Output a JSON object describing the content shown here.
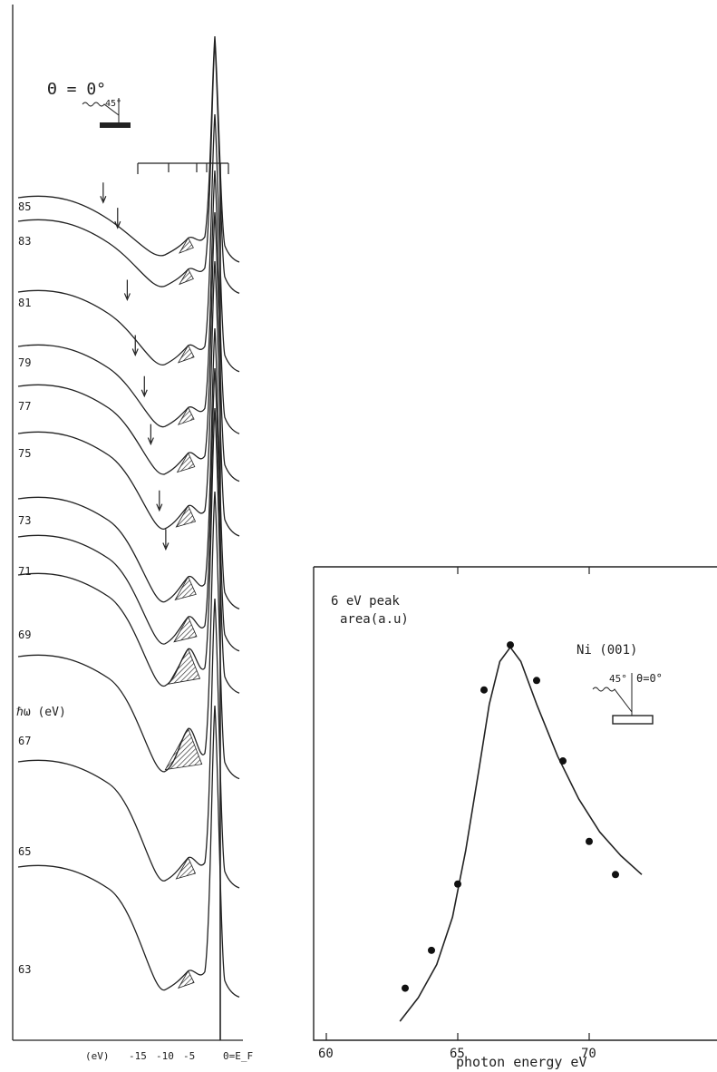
{
  "chart_data": [
    {
      "type": "line",
      "panel": "left",
      "angle_label": "Θ = 0°",
      "inset_angle": "45°",
      "side_label": "ℏω (eV)",
      "x_unit_label": "(eV)",
      "x_ticks": [
        "-15",
        "-10",
        "-5",
        "0=E_F"
      ],
      "xlim": [
        -16,
        0
      ],
      "series": [
        {
          "name": "85",
          "arrow_eV": -18.5
        },
        {
          "name": "83",
          "arrow_eV": -15.8
        },
        {
          "name": "81",
          "arrow_eV": -14.0
        },
        {
          "name": "79",
          "arrow_eV": -12.5
        },
        {
          "name": "77",
          "arrow_eV": -10.8
        },
        {
          "name": "75",
          "arrow_eV": -9.6
        },
        {
          "name": "73",
          "arrow_eV": -8.0
        },
        {
          "name": "71",
          "arrow_eV": -6.8
        },
        {
          "name": "69"
        },
        {
          "name": "67"
        },
        {
          "name": "65"
        },
        {
          "name": "63"
        }
      ],
      "hatched_peak_eV": -6,
      "grid": false
    },
    {
      "type": "scatter",
      "panel": "right",
      "title_line1": "6 eV peak",
      "title_line2": "area(a.u)",
      "sample_label": "Ni (001)",
      "inset_angle1": "45°",
      "inset_angle2": "θ=0°",
      "xlabel": "photon energy  eV",
      "x_ticks": [
        "60",
        "65",
        "70"
      ],
      "xlim": [
        60,
        75
      ],
      "ylim": [
        0,
        10
      ],
      "points": [
        {
          "x": 63,
          "y": 1.1
        },
        {
          "x": 64,
          "y": 1.9
        },
        {
          "x": 65,
          "y": 3.3
        },
        {
          "x": 66,
          "y": 7.4
        },
        {
          "x": 67,
          "y": 8.35
        },
        {
          "x": 68,
          "y": 7.6
        },
        {
          "x": 69,
          "y": 5.9
        },
        {
          "x": 70,
          "y": 4.2
        },
        {
          "x": 71,
          "y": 3.5
        }
      ],
      "fit_curve": [
        {
          "x": 62.8,
          "y": 0.4
        },
        {
          "x": 63.5,
          "y": 0.9
        },
        {
          "x": 64.2,
          "y": 1.6
        },
        {
          "x": 64.8,
          "y": 2.6
        },
        {
          "x": 65.3,
          "y": 4.0
        },
        {
          "x": 65.8,
          "y": 5.7
        },
        {
          "x": 66.2,
          "y": 7.1
        },
        {
          "x": 66.6,
          "y": 8.0
        },
        {
          "x": 67.0,
          "y": 8.3
        },
        {
          "x": 67.4,
          "y": 8.0
        },
        {
          "x": 68.0,
          "y": 7.1
        },
        {
          "x": 68.8,
          "y": 6.0
        },
        {
          "x": 69.6,
          "y": 5.1
        },
        {
          "x": 70.4,
          "y": 4.4
        },
        {
          "x": 71.2,
          "y": 3.9
        },
        {
          "x": 72.0,
          "y": 3.5
        }
      ],
      "grid": false
    }
  ]
}
